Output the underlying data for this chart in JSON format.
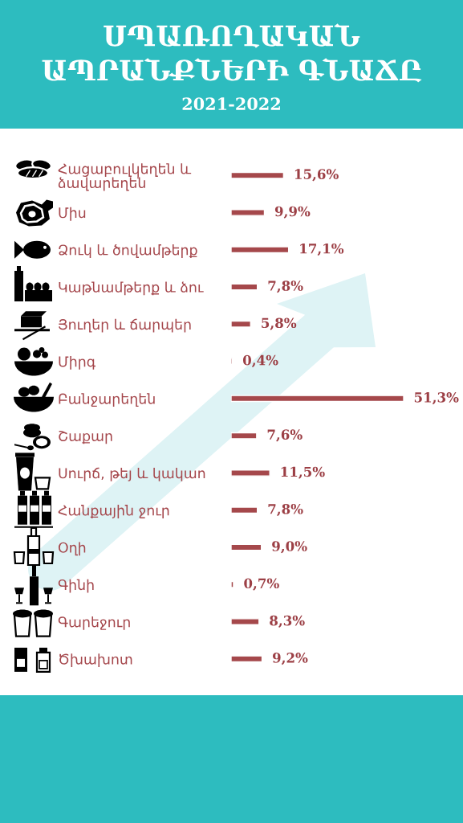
{
  "chart_data": {
    "type": "bar",
    "orientation": "horizontal",
    "title": "ՍՊԱՌՈՂԱԿԱՆ\nԱՊՐԱՆՔՆԵՐԻ ԳՆԱՃԸ",
    "subtitle": "2021-2022",
    "categories": [
      "Հացաբուլկեղեն և\nձավարեղեն",
      "Միս",
      "Ձուկ և ծովամթերք",
      "Կաթնամթերք և ձու",
      "Յուղեր և ճարպեր",
      "Միրգ",
      "Բանջարեղեն",
      "Շաքար",
      "Սուրճ, թեյ և կակաո",
      "Հանքային ջուր",
      "Օղի",
      "Գինի",
      "Գարեջուր",
      "Ծխախոտ"
    ],
    "values": [
      15.6,
      9.9,
      17.1,
      7.8,
      5.8,
      0.4,
      51.3,
      7.6,
      11.5,
      7.8,
      9.0,
      0.7,
      8.3,
      9.2
    ],
    "value_labels": [
      "15,6%",
      "9,9%",
      "17,1%",
      "7,8%",
      "5,8%",
      "0,4%",
      "51,3%",
      "7,6%",
      "11,5%",
      "7,8%",
      "9,0%",
      "0,7%",
      "8,3%",
      "9,2%"
    ],
    "color": "#a5484b",
    "tick_labels": "y"
  }
}
